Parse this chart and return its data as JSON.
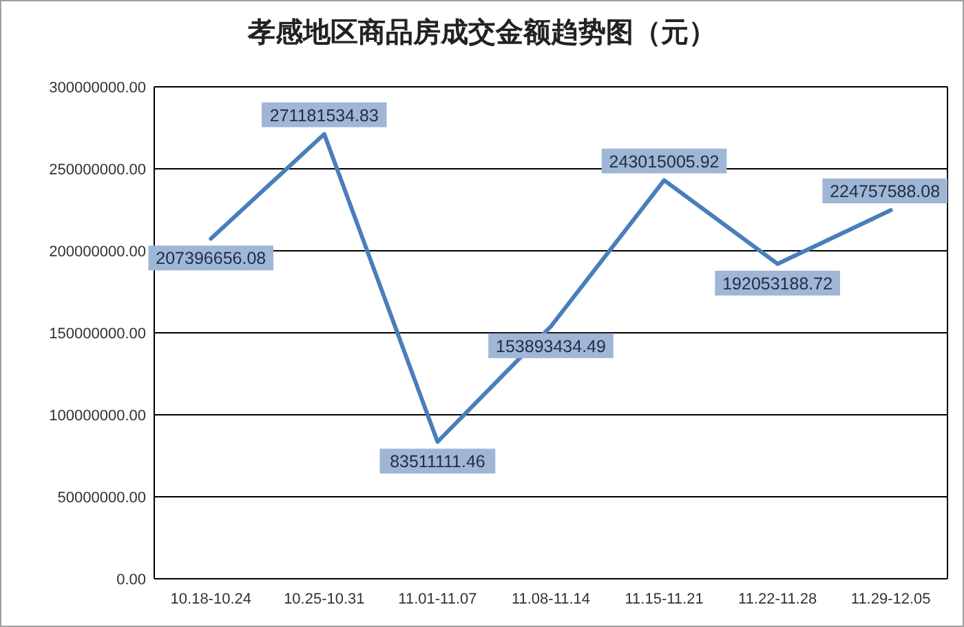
{
  "chart_data": {
    "type": "line",
    "title": "孝感地区商品房成交金额趋势图（元）",
    "categories": [
      "10.18-10.24",
      "10.25-10.31",
      "11.01-11.07",
      "11.08-11.14",
      "11.15-11.21",
      "11.22-11.28",
      "11.29-12.05"
    ],
    "series": [
      {
        "color": "#4a7ebb",
        "values": [
          207396656.08,
          271181534.83,
          83511111.46,
          153893434.49,
          243015005.92,
          192053188.72,
          224757588.08
        ]
      }
    ],
    "ylim": [
      0,
      300000000
    ],
    "yticks": [
      {
        "value": 0,
        "label": "0.00"
      },
      {
        "value": 50000000,
        "label": "50000000.00"
      },
      {
        "value": 100000000,
        "label": "100000000.00"
      },
      {
        "value": 150000000,
        "label": "150000000.00"
      },
      {
        "value": 200000000,
        "label": "200000000.00"
      },
      {
        "value": 250000000,
        "label": "250000000.00"
      },
      {
        "value": 300000000,
        "label": "300000000.00"
      }
    ],
    "grid": "y",
    "data_labels": true,
    "marker": "none",
    "line_style": "solid"
  }
}
